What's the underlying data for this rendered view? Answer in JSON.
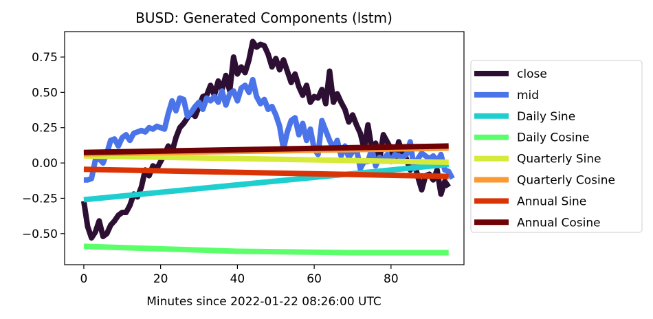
{
  "chart_data": {
    "type": "line",
    "title": "BUSD: Generated Components (lstm)",
    "xlabel": "Minutes since 2022-01-22 08:26:00 UTC",
    "ylabel": "",
    "xlim": [
      -5,
      99
    ],
    "ylim": [
      -0.72,
      0.93
    ],
    "xticks": [
      0,
      20,
      40,
      60,
      80
    ],
    "yticks": [
      -0.5,
      -0.25,
      0.0,
      0.25,
      0.5,
      0.75
    ],
    "ytick_labels": [
      "−0.50",
      "−0.25",
      "0.00",
      "0.25",
      "0.50",
      "0.75"
    ],
    "grid": false,
    "legend_position": "center-right outside",
    "series": [
      {
        "name": "close",
        "color": "#2d0f33",
        "values": [
          -0.27,
          -0.45,
          -0.53,
          -0.49,
          -0.41,
          -0.52,
          -0.5,
          -0.44,
          -0.41,
          -0.37,
          -0.35,
          -0.35,
          -0.3,
          -0.22,
          -0.24,
          -0.17,
          -0.05,
          -0.09,
          -0.02,
          -0.04,
          0.01,
          0.06,
          0.12,
          0.08,
          0.18,
          0.25,
          0.28,
          0.32,
          0.36,
          0.33,
          0.4,
          0.47,
          0.48,
          0.55,
          0.48,
          0.58,
          0.52,
          0.62,
          0.51,
          0.75,
          0.63,
          0.68,
          0.64,
          0.73,
          0.86,
          0.82,
          0.84,
          0.83,
          0.77,
          0.68,
          0.74,
          0.66,
          0.73,
          0.65,
          0.57,
          0.63,
          0.54,
          0.48,
          0.55,
          0.43,
          0.47,
          0.46,
          0.52,
          0.42,
          0.65,
          0.43,
          0.49,
          0.43,
          0.38,
          0.29,
          0.34,
          0.27,
          0.21,
          0.1,
          0.27,
          0.1,
          0.14,
          0.02,
          0.2,
          0.15,
          0.1,
          0.02,
          0.15,
          0.07,
          0.03,
          -0.05,
          0.01,
          -0.1,
          -0.19,
          -0.09,
          -0.08,
          -0.12,
          -0.05,
          -0.22,
          -0.13,
          -0.17
        ]
      },
      {
        "name": "mid",
        "color": "#4a74e8",
        "values": [
          -0.12,
          -0.12,
          -0.11,
          0.02,
          0.03,
          0.0,
          0.07,
          0.16,
          0.17,
          0.12,
          0.18,
          0.2,
          0.16,
          0.21,
          0.22,
          0.23,
          0.22,
          0.25,
          0.24,
          0.26,
          0.25,
          0.24,
          0.35,
          0.44,
          0.37,
          0.46,
          0.45,
          0.33,
          0.36,
          0.4,
          0.43,
          0.38,
          0.46,
          0.44,
          0.47,
          0.43,
          0.51,
          0.41,
          0.49,
          0.51,
          0.44,
          0.53,
          0.55,
          0.5,
          0.59,
          0.47,
          0.42,
          0.45,
          0.38,
          0.4,
          0.34,
          0.26,
          0.1,
          0.22,
          0.3,
          0.32,
          0.2,
          0.28,
          0.16,
          0.24,
          0.1,
          0.06,
          0.3,
          0.23,
          0.16,
          0.1,
          0.16,
          0.05,
          0.12,
          0.04,
          0.08,
          0.1,
          -0.04,
          0.01,
          0.01,
          0.1,
          -0.02,
          0.04,
          0.02,
          0.06,
          0.01,
          0.06,
          0.05,
          0.04,
          0.06,
          0.15,
          -0.04,
          0.03,
          0.07,
          0.05,
          0.03,
          0.05,
          0.01,
          0.06,
          -0.05,
          -0.06,
          -0.11
        ]
      },
      {
        "name": "Daily Sine",
        "color": "#1fcfcf",
        "x": [
          0,
          95
        ],
        "values": [
          -0.26,
          -0.01
        ]
      },
      {
        "name": "Daily Cosine",
        "color": "#5bff6a",
        "x": [
          0,
          40,
          70,
          95
        ],
        "values": [
          -0.59,
          -0.625,
          -0.635,
          -0.635
        ]
      },
      {
        "name": "Quarterly Sine",
        "color": "#d6ea3b",
        "x": [
          0,
          95
        ],
        "values": [
          0.05,
          0.005
        ]
      },
      {
        "name": "Quarterly Cosine",
        "color": "#fb9932",
        "x": [
          0,
          95
        ],
        "values": [
          0.065,
          0.105
        ]
      },
      {
        "name": "Annual Sine",
        "color": "#da3406",
        "x": [
          0,
          95
        ],
        "values": [
          -0.045,
          -0.095
        ]
      },
      {
        "name": "Annual Cosine",
        "color": "#6e0204",
        "x": [
          0,
          95
        ],
        "values": [
          0.075,
          0.12
        ]
      }
    ]
  }
}
